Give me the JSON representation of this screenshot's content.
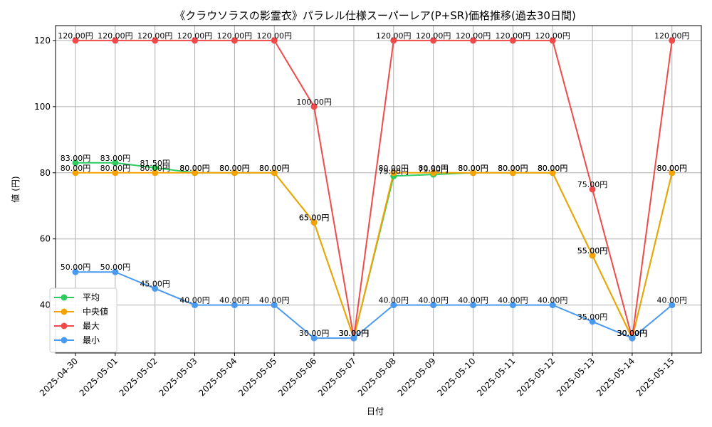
{
  "chart_data": {
    "type": "line",
    "title": "《クラウソラスの影霊衣》パラレル仕様スーパーレア(P+SR)価格推移(過去30日間)",
    "xlabel": "日付",
    "ylabel": "値 (円)",
    "categories": [
      "2025-04-30",
      "2025-05-01",
      "2025-05-02",
      "2025-05-03",
      "2025-05-04",
      "2025-05-05",
      "2025-05-06",
      "2025-05-07",
      "2025-05-08",
      "2025-05-09",
      "2025-05-10",
      "2025-05-11",
      "2025-05-12",
      "2025-05-13",
      "2025-05-14",
      "2025-05-15"
    ],
    "ylim": [
      25.5,
      124.5
    ],
    "yticks": [
      40,
      60,
      80,
      100,
      120
    ],
    "grid": true,
    "legend_position": "lower-left",
    "value_suffix": "円",
    "series": [
      {
        "name": "平均",
        "color": "#2ecc5f",
        "values": [
          83.0,
          83.0,
          81.5,
          80.0,
          80.0,
          80.0,
          65.0,
          30.0,
          79.0,
          79.5,
          80.0,
          80.0,
          80.0,
          55.0,
          30.0,
          80.0
        ]
      },
      {
        "name": "中央値",
        "color": "#f5a300",
        "values": [
          80.0,
          80.0,
          80.0,
          80.0,
          80.0,
          80.0,
          65.0,
          30.0,
          80.0,
          80.0,
          80.0,
          80.0,
          80.0,
          55.0,
          30.0,
          80.0
        ]
      },
      {
        "name": "最大",
        "color": "#f04a4a",
        "values": [
          120.0,
          120.0,
          120.0,
          120.0,
          120.0,
          120.0,
          100.0,
          30.0,
          120.0,
          120.0,
          120.0,
          120.0,
          120.0,
          75.0,
          30.0,
          120.0
        ]
      },
      {
        "name": "最小",
        "color": "#4a9af0",
        "values": [
          50.0,
          50.0,
          45.0,
          40.0,
          40.0,
          40.0,
          30.0,
          30.0,
          40.0,
          40.0,
          40.0,
          40.0,
          40.0,
          35.0,
          30.0,
          40.0
        ]
      }
    ]
  }
}
